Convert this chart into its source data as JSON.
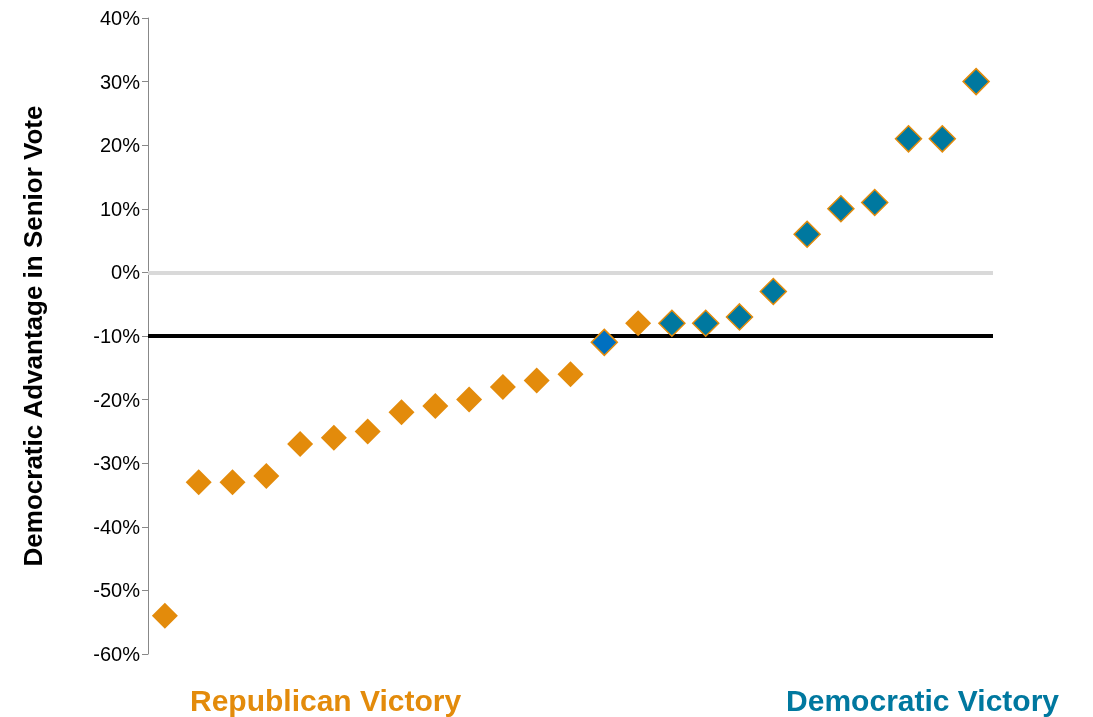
{
  "chart_data": {
    "type": "scatter",
    "ylabel": "Democratic Advantage in Senior Vote",
    "categories": [
      null,
      null,
      null,
      null,
      null,
      null,
      null,
      null,
      null,
      null,
      null,
      null,
      null,
      null,
      null,
      null,
      null,
      null,
      null,
      null,
      null,
      null,
      null,
      null,
      null
    ],
    "values": [
      -54,
      -33,
      -33,
      -32,
      -27,
      -26,
      -25,
      -22,
      -21,
      -20,
      -18,
      -17,
      -16,
      -11,
      -8,
      -8,
      -8,
      -7,
      -3,
      6,
      10,
      11,
      21,
      21,
      30
    ],
    "colors": [
      "#e38b0b",
      "#e38b0b",
      "#e38b0b",
      "#e38b0b",
      "#e38b0b",
      "#e38b0b",
      "#e38b0b",
      "#e38b0b",
      "#e38b0b",
      "#e38b0b",
      "#e38b0b",
      "#e38b0b",
      "#e38b0b",
      "#0070c0",
      "#e38b0b",
      "#00789f",
      "#00789f",
      "#00789f",
      "#00789f",
      "#00789f",
      "#00789f",
      "#00789f",
      "#00789f",
      "#00789f",
      "#00789f"
    ],
    "marker": "diamond",
    "ylim": [
      -60,
      40
    ],
    "yticks": [
      {
        "value": -60,
        "label": "-60%"
      },
      {
        "value": -50,
        "label": "-50%"
      },
      {
        "value": -40,
        "label": "-40%"
      },
      {
        "value": -30,
        "label": "-30%"
      },
      {
        "value": -20,
        "label": "-20%"
      },
      {
        "value": -10,
        "label": "-10%"
      },
      {
        "value": 0,
        "label": "0%"
      },
      {
        "value": 10,
        "label": "10%"
      },
      {
        "value": 20,
        "label": "20%"
      },
      {
        "value": 30,
        "label": "30%"
      },
      {
        "value": 40,
        "label": "40%"
      }
    ],
    "ref_lines": [
      {
        "axis": "y",
        "value": 0,
        "color": "#d9d9d9"
      },
      {
        "axis": "y",
        "value": -10,
        "color": "#000000"
      }
    ],
    "grid": false,
    "tick_labels": "y",
    "annotations": [
      "Republican Victory",
      "Democratic Victory"
    ]
  }
}
